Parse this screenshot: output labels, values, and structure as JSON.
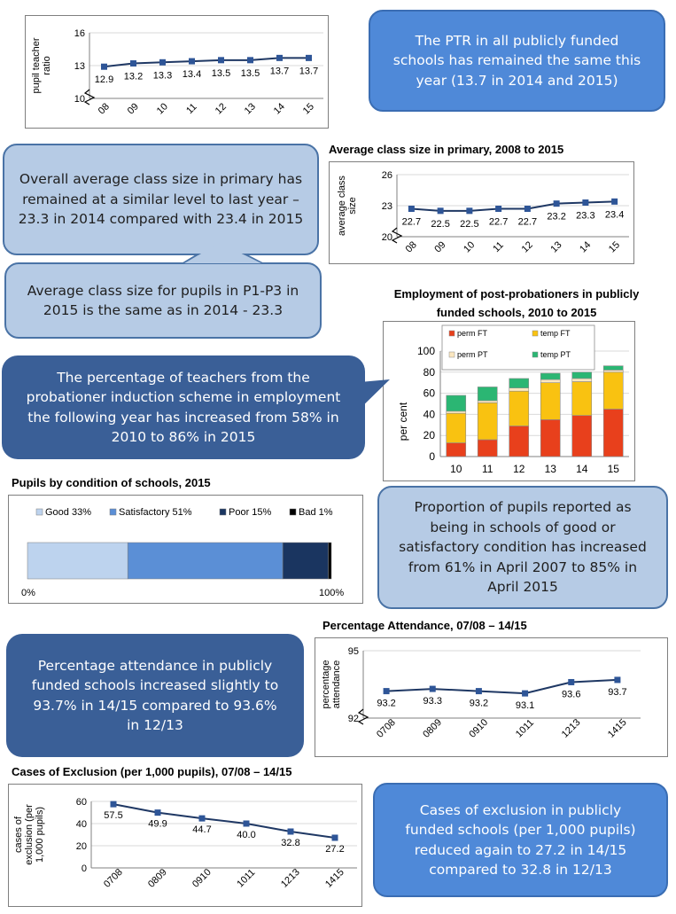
{
  "callouts": {
    "ptr": "The PTR in all publicly funded schools has remained the same this year (13.7 in 2014 and 2015)",
    "class_size": "Overall average class size in primary has remained at a similar level to last year – 23.3 in 2014 compared with 23.4 in 2015",
    "p1p3": "Average class size for pupils in P1-P3 in 2015 is the same as in 2014 - 23.3",
    "probationer": "The percentage of teachers from the probationer induction scheme in employment the following year has increased from 58% in 2010 to 86% in 2015",
    "condition": "Proportion of pupils reported as being in schools of good or satisfactory condition has increased from 61% in April 2007 to 85% in April 2015",
    "attendance": "Percentage attendance in publicly funded schools increased slightly to 93.7% in 14/15 compared to 93.6% in 12/13",
    "exclusion": "Cases of exclusion in publicly funded schools (per 1,000 pupils) reduced again to 27.2 in 14/15 compared to 32.8 in 12/13"
  },
  "colors": {
    "line": "#1f3864",
    "marker": "#2e5597",
    "perm_ft": "#e8401c",
    "temp_ft": "#f9c211",
    "perm_pt": "#fbe7c0",
    "temp_pt": "#2bb673",
    "good": "#bdd3ee",
    "satisfactory": "#5b8fd6",
    "poor": "#1a3560",
    "bad": "#000000"
  },
  "chart_data": [
    {
      "id": "ptr",
      "type": "line",
      "title": "",
      "ylabel": "pupil teacher ratio",
      "categories": [
        "08",
        "09",
        "10",
        "11",
        "12",
        "13",
        "14",
        "15"
      ],
      "values": [
        12.9,
        13.2,
        13.3,
        13.4,
        13.5,
        13.5,
        13.7,
        13.7
      ],
      "value_labels": [
        "12.9",
        "13.2",
        "13.3",
        "13.4",
        "13.5",
        "13.5",
        "13.7",
        "13.7"
      ],
      "yticks": [
        "10",
        "13",
        "16"
      ],
      "ylim": [
        10,
        16
      ],
      "axis_break": true
    },
    {
      "id": "class_size",
      "type": "line",
      "title": "Average class size in primary, 2008 to 2015",
      "ylabel": "average class size",
      "categories": [
        "08",
        "09",
        "10",
        "11",
        "12",
        "13",
        "14",
        "15"
      ],
      "values": [
        22.7,
        22.5,
        22.5,
        22.7,
        22.7,
        23.2,
        23.3,
        23.4
      ],
      "value_labels": [
        "22.7",
        "22.5",
        "22.5",
        "22.7",
        "22.7",
        "23.2",
        "23.3",
        "23.4"
      ],
      "yticks": [
        "20",
        "23",
        "26"
      ],
      "ylim": [
        20,
        26
      ],
      "axis_break": true
    },
    {
      "id": "post_probationers",
      "type": "bar",
      "stacked": true,
      "title": "Employment of post-probationers in publicly funded schools, 2010 to 2015",
      "ylabel": "per cent",
      "categories": [
        "10",
        "11",
        "12",
        "13",
        "14",
        "15"
      ],
      "yticks": [
        "0",
        "20",
        "40",
        "60",
        "80",
        "100"
      ],
      "ylim": [
        0,
        100
      ],
      "legend": [
        "perm FT",
        "temp FT",
        "perm PT",
        "temp PT"
      ],
      "series": [
        {
          "name": "perm FT",
          "values": [
            13,
            16,
            29,
            35,
            39,
            45
          ]
        },
        {
          "name": "temp FT",
          "values": [
            28,
            35,
            33,
            35,
            32,
            35
          ]
        },
        {
          "name": "perm PT",
          "values": [
            2,
            2,
            3,
            3,
            3,
            2
          ]
        },
        {
          "name": "temp PT",
          "values": [
            15,
            13,
            9,
            6,
            6,
            4
          ]
        }
      ]
    },
    {
      "id": "condition",
      "type": "bar",
      "stacked": true,
      "orientation": "horizontal",
      "title": "Pupils by condition of schools, 2015",
      "legend": [
        "Good 33%",
        "Satisfactory 51%",
        "Poor 15%",
        "Bad 1%"
      ],
      "values": [
        33,
        51,
        15,
        1
      ],
      "axis_labels": [
        "0%",
        "100%"
      ]
    },
    {
      "id": "attendance",
      "type": "line",
      "title": "Percentage Attendance, 07/08 – 14/15",
      "ylabel": "percentage attendance",
      "categories": [
        "0708",
        "0809",
        "0910",
        "1011",
        "1213",
        "1415"
      ],
      "values": [
        93.2,
        93.3,
        93.2,
        93.1,
        93.6,
        93.7
      ],
      "value_labels": [
        "93.2",
        "93.3",
        "93.2",
        "93.1",
        "93.6",
        "93.7"
      ],
      "yticks": [
        "92",
        "95"
      ],
      "ylim": [
        92,
        95
      ],
      "axis_break": true
    },
    {
      "id": "exclusion",
      "type": "line",
      "title": "Cases of Exclusion  (per 1,000 pupils), 07/08 – 14/15",
      "ylabel": "cases of exclusion (per 1,000 pupils)",
      "categories": [
        "0708",
        "0809",
        "0910",
        "1011",
        "1213",
        "1415"
      ],
      "values": [
        57.5,
        49.9,
        44.7,
        40.0,
        32.8,
        27.2
      ],
      "value_labels": [
        "57.5",
        "49.9",
        "44.7",
        "40.0",
        "32.8",
        "27.2"
      ],
      "yticks": [
        "0",
        "20",
        "40",
        "60"
      ],
      "ylim": [
        0,
        60
      ]
    }
  ]
}
